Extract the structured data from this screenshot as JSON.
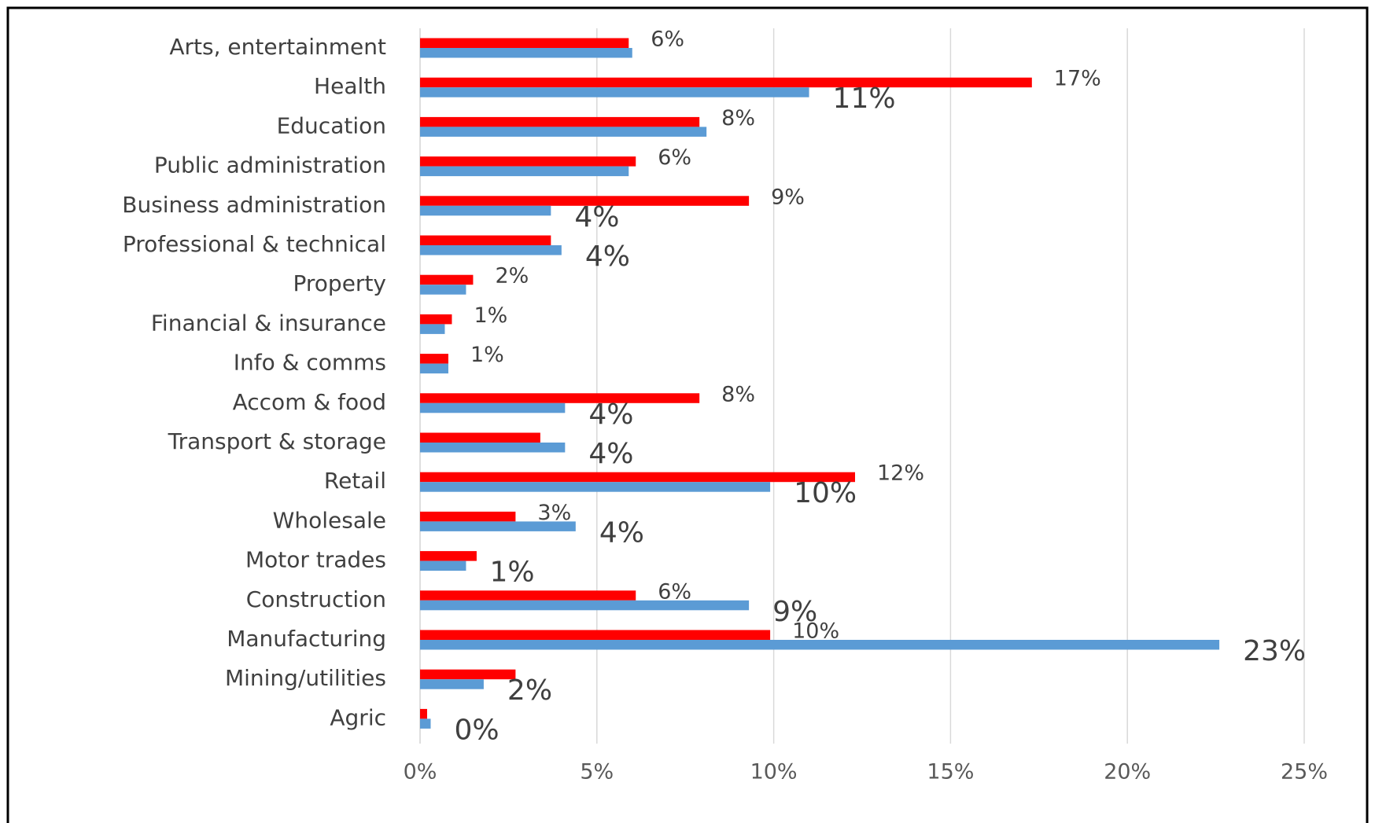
{
  "chart_data": {
    "type": "hbar",
    "categories": [
      "Arts, entertainment",
      "Health",
      "Education",
      "Public administration",
      "Business administration",
      "Professional & technical",
      "Property",
      "Financial & insurance",
      "Info & comms",
      "Accom & food",
      "Transport & storage",
      "Retail",
      "Wholesale",
      "Motor trades",
      "Construction",
      "Manufacturing",
      "Mining/utilities",
      "Agric"
    ],
    "series": [
      {
        "color": "#ff0000",
        "values": [
          5.9,
          17.3,
          7.9,
          6.1,
          9.3,
          3.7,
          1.5,
          0.9,
          0.8,
          7.9,
          3.4,
          12.3,
          2.7,
          1.6,
          6.1,
          9.9,
          2.7,
          0.2
        ],
        "value_labels": [
          "6%",
          "17%",
          "8%",
          "6%",
          "9%",
          null,
          "2%",
          "1%",
          "1%",
          "8%",
          null,
          "12%",
          "3%",
          null,
          "6%",
          "10%",
          null,
          null
        ]
      },
      {
        "color": "#5b9bd5",
        "values": [
          6.0,
          11.0,
          8.1,
          5.9,
          3.7,
          4.0,
          1.3,
          0.7,
          0.8,
          4.1,
          4.1,
          9.9,
          4.4,
          1.3,
          9.3,
          22.6,
          1.8,
          0.3
        ],
        "value_labels": [
          null,
          "11%",
          null,
          null,
          "4%",
          "4%",
          null,
          null,
          null,
          "4%",
          "4%",
          "10%",
          "4%",
          "1%",
          "9%",
          "23%",
          "2%",
          "0%"
        ]
      }
    ],
    "xlim": [
      0,
      25
    ],
    "xticks": [
      {
        "value": 0,
        "label": "0%"
      },
      {
        "value": 5,
        "label": "5%"
      },
      {
        "value": 10,
        "label": "10%"
      },
      {
        "value": 15,
        "label": "15%"
      },
      {
        "value": 20,
        "label": "20%"
      },
      {
        "value": 25,
        "label": "25%"
      }
    ],
    "grid": true
  }
}
